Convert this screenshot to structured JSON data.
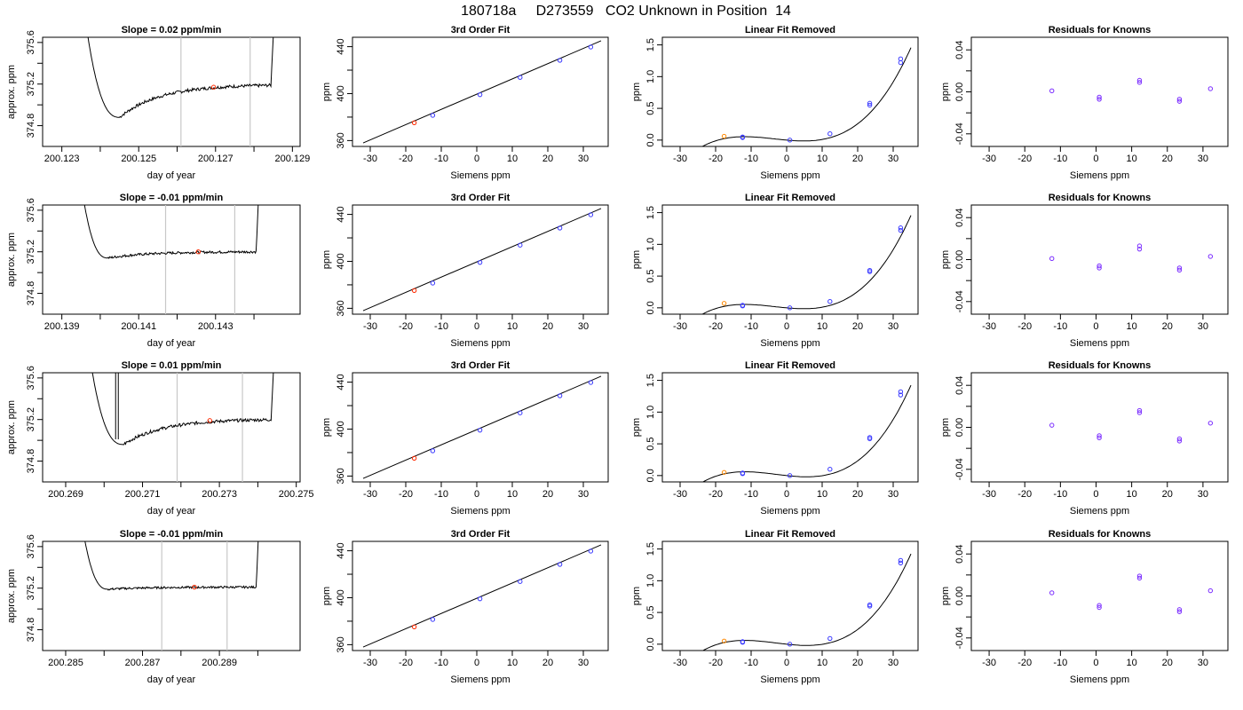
{
  "figure": {
    "title": "180718a     D273559   CO2 Unknown in Position  14",
    "colors": {
      "line": "#000000",
      "sample_point": "#ff2a00",
      "known_point": "#3a3aff",
      "unknown_point_fit": "#ff8800",
      "residual_point": "#7a2cff",
      "window_line": "#c8c8c8"
    }
  },
  "chart_data": [
    {
      "panel": "row1-trace",
      "type": "line",
      "title": "Slope =  0.02  ppm/min",
      "xlabel": "day of year",
      "ylabel": "approx. ppm",
      "xlim": [
        200.1225,
        200.1292
      ],
      "ylim": [
        374.6,
        375.65
      ],
      "xticks": [
        "200.123",
        "200.125",
        "200.127",
        "200.129"
      ],
      "xtick_values": [
        200.123,
        200.125,
        200.127,
        200.129
      ],
      "xminor": [
        200.124,
        200.126,
        200.128
      ],
      "yticks": [
        "374.8",
        "375.2",
        "375.6"
      ],
      "ytick_values": [
        374.8,
        375.2,
        375.6
      ],
      "yminor": [
        375.0,
        375.4
      ],
      "window": [
        200.1261,
        200.1279
      ],
      "trace": {
        "start": 200.1235,
        "end": 200.1287,
        "low_point": [
          200.1245,
          374.88
        ],
        "settle": 375.08,
        "level_end": 375.19,
        "noise": 0.015
      },
      "sample_point": [
        200.12695,
        375.17
      ]
    },
    {
      "panel": "row2-trace",
      "type": "line",
      "title": "Slope =  -0.01  ppm/min",
      "xlabel": "day of year",
      "ylabel": "approx. ppm",
      "xlim": [
        200.1385,
        200.1452
      ],
      "ylim": [
        374.6,
        375.65
      ],
      "xticks": [
        "200.139",
        "200.141",
        "200.143"
      ],
      "xtick_values": [
        200.139,
        200.141,
        200.143
      ],
      "xminor": [
        200.14,
        200.142,
        200.144
      ],
      "yticks": [
        "374.8",
        "375.2",
        "375.6"
      ],
      "ytick_values": [
        374.8,
        375.2,
        375.6
      ],
      "yminor": [
        375.0,
        375.4
      ],
      "window": [
        200.1417,
        200.1435
      ],
      "trace": {
        "start": 200.1394,
        "end": 200.1443,
        "low_point": [
          200.1402,
          375.14
        ],
        "settle": 375.17,
        "level_end": 375.2,
        "noise": 0.012
      },
      "sample_point": [
        200.14255,
        375.2
      ]
    },
    {
      "panel": "row3-trace",
      "type": "line",
      "title": "Slope =  0.01  ppm/min",
      "xlabel": "day of year",
      "ylabel": "approx. ppm",
      "xlim": [
        200.2684,
        200.2751
      ],
      "ylim": [
        374.6,
        375.65
      ],
      "xticks": [
        "200.269",
        "200.271",
        "200.273",
        "200.275"
      ],
      "xtick_values": [
        200.269,
        200.271,
        200.273,
        200.275
      ],
      "xminor": [
        200.27,
        200.272,
        200.274
      ],
      "yticks": [
        "374.8",
        "375.2",
        "375.6"
      ],
      "ytick_values": [
        374.8,
        375.2,
        375.6
      ],
      "yminor": [
        375.0,
        375.4
      ],
      "window": [
        200.2719,
        200.2736
      ],
      "trace": {
        "start": 200.2695,
        "end": 200.2746,
        "low_point": [
          200.2705,
          374.96
        ],
        "settle": 375.1,
        "level_end": 375.2,
        "noise": 0.015,
        "spike_x": 200.2703
      },
      "sample_point": [
        200.27275,
        375.19
      ]
    },
    {
      "panel": "row4-trace",
      "type": "line",
      "title": "Slope =  -0.01  ppm/min",
      "xlabel": "day of year",
      "ylabel": "approx. ppm",
      "xlim": [
        200.2844,
        200.2911
      ],
      "ylim": [
        374.6,
        375.65
      ],
      "xticks": [
        "200.285",
        "200.287",
        "200.289"
      ],
      "xtick_values": [
        200.285,
        200.287,
        200.289
      ],
      "xminor": [
        200.286,
        200.288,
        200.29
      ],
      "yticks": [
        "374.8",
        "375.2",
        "375.6"
      ],
      "ytick_values": [
        374.8,
        375.2,
        375.6
      ],
      "yminor": [
        375.0,
        375.4
      ],
      "window": [
        200.2875,
        200.2892
      ],
      "trace": {
        "start": 200.2853,
        "end": 200.2902,
        "low_point": [
          200.2861,
          375.19
        ],
        "settle": 375.19,
        "level_end": 375.21,
        "noise": 0.01
      },
      "sample_point": [
        200.28835,
        375.21
      ]
    },
    {
      "panel": "row1-fit",
      "type": "scatter",
      "title": "3rd Order Fit",
      "xlabel": "Siemens ppm",
      "ylabel": "ppm",
      "xlim": [
        -35,
        37
      ],
      "ylim": [
        355,
        448
      ],
      "xticks": [
        "-30",
        "-20",
        "-10",
        "0",
        "10",
        "20",
        "30"
      ],
      "xtick_values": [
        -30,
        -20,
        -10,
        0,
        10,
        20,
        30
      ],
      "yticks": [
        "360",
        "400",
        "440"
      ],
      "ytick_values": [
        360,
        400,
        440
      ],
      "yminor": [
        380,
        420
      ],
      "line": [
        [
          -32,
          358
        ],
        [
          35,
          445
        ]
      ],
      "known_points": [
        [
          -12.4,
          381.5
        ],
        [
          0.9,
          399.1
        ],
        [
          12.2,
          413.8
        ],
        [
          23.4,
          428.4
        ],
        [
          32.1,
          439.7
        ]
      ],
      "sample_point": [
        -17.6,
        375.2
      ]
    },
    {
      "panel": "row2-fit",
      "type": "scatter",
      "title": "3rd Order Fit",
      "xlabel": "Siemens ppm",
      "ylabel": "ppm",
      "xlim": [
        -35,
        37
      ],
      "ylim": [
        355,
        448
      ],
      "xticks": [
        "-30",
        "-20",
        "-10",
        "0",
        "10",
        "20",
        "30"
      ],
      "xtick_values": [
        -30,
        -20,
        -10,
        0,
        10,
        20,
        30
      ],
      "yticks": [
        "360",
        "400",
        "440"
      ],
      "ytick_values": [
        360,
        400,
        440
      ],
      "yminor": [
        380,
        420
      ],
      "line": [
        [
          -32,
          358
        ],
        [
          35,
          445
        ]
      ],
      "known_points": [
        [
          -12.4,
          381.5
        ],
        [
          0.9,
          399.1
        ],
        [
          12.2,
          413.8
        ],
        [
          23.4,
          428.4
        ],
        [
          32.1,
          439.7
        ]
      ],
      "sample_point": [
        -17.6,
        375.2
      ]
    },
    {
      "panel": "row3-fit",
      "type": "scatter",
      "title": "3rd Order Fit",
      "xlabel": "Siemens ppm",
      "ylabel": "ppm",
      "xlim": [
        -35,
        37
      ],
      "ylim": [
        355,
        448
      ],
      "xticks": [
        "-30",
        "-20",
        "-10",
        "0",
        "10",
        "20",
        "30"
      ],
      "xtick_values": [
        -30,
        -20,
        -10,
        0,
        10,
        20,
        30
      ],
      "yticks": [
        "360",
        "400",
        "440"
      ],
      "ytick_values": [
        360,
        400,
        440
      ],
      "yminor": [
        380,
        420
      ],
      "line": [
        [
          -32,
          358
        ],
        [
          35,
          445
        ]
      ],
      "known_points": [
        [
          -12.4,
          381.5
        ],
        [
          0.9,
          399.1
        ],
        [
          12.2,
          413.8
        ],
        [
          23.4,
          428.4
        ],
        [
          32.1,
          439.7
        ]
      ],
      "sample_point": [
        -17.6,
        375.2
      ]
    },
    {
      "panel": "row4-fit",
      "type": "scatter",
      "title": "3rd Order Fit",
      "xlabel": "Siemens ppm",
      "ylabel": "ppm",
      "xlim": [
        -35,
        37
      ],
      "ylim": [
        355,
        448
      ],
      "xticks": [
        "-30",
        "-20",
        "-10",
        "0",
        "10",
        "20",
        "30"
      ],
      "xtick_values": [
        -30,
        -20,
        -10,
        0,
        10,
        20,
        30
      ],
      "yticks": [
        "360",
        "400",
        "440"
      ],
      "ytick_values": [
        360,
        400,
        440
      ],
      "yminor": [
        380,
        420
      ],
      "line": [
        [
          -32,
          358
        ],
        [
          35,
          445
        ]
      ],
      "known_points": [
        [
          -12.4,
          381.5
        ],
        [
          0.9,
          399.1
        ],
        [
          12.2,
          413.8
        ],
        [
          23.4,
          428.4
        ],
        [
          32.1,
          439.7
        ]
      ],
      "sample_point": [
        -17.6,
        375.2
      ]
    },
    {
      "panel": "row1-linear-removed",
      "type": "line",
      "title": "Linear Fit Removed",
      "xlabel": "Siemens ppm",
      "ylabel": "ppm",
      "xlim": [
        -35,
        37
      ],
      "ylim": [
        -0.1,
        1.62
      ],
      "xticks": [
        "-30",
        "-20",
        "-10",
        "0",
        "10",
        "20",
        "30"
      ],
      "xtick_values": [
        -30,
        -20,
        -10,
        0,
        10,
        20,
        30
      ],
      "yticks": [
        "0.0",
        "0.5",
        "1.0",
        "1.5"
      ],
      "ytick_values": [
        0,
        0.5,
        1.0,
        1.5
      ],
      "curve_poly": [
        0.0,
        -0.005,
        0.000306,
        2.93e-05
      ],
      "curve_x": [
        -32,
        35
      ],
      "known_points": [
        [
          -12.4,
          0.05
        ],
        [
          -12.4,
          0.04
        ],
        [
          0.9,
          0.0
        ],
        [
          12.2,
          0.1
        ],
        [
          23.4,
          0.55
        ],
        [
          23.4,
          0.58
        ],
        [
          32.1,
          1.22
        ],
        [
          32.1,
          1.28
        ]
      ],
      "sample_point": [
        -17.6,
        0.06
      ]
    },
    {
      "panel": "row2-linear-removed",
      "type": "line",
      "title": "Linear Fit Removed",
      "xlabel": "Siemens ppm",
      "ylabel": "ppm",
      "xlim": [
        -35,
        37
      ],
      "ylim": [
        -0.1,
        1.62
      ],
      "xticks": [
        "-30",
        "-20",
        "-10",
        "0",
        "10",
        "20",
        "30"
      ],
      "xtick_values": [
        -30,
        -20,
        -10,
        0,
        10,
        20,
        30
      ],
      "yticks": [
        "0.0",
        "0.5",
        "1.0",
        "1.5"
      ],
      "ytick_values": [
        0,
        0.5,
        1.0,
        1.5
      ],
      "curve_poly": [
        0.0,
        -0.005,
        0.000306,
        2.93e-05
      ],
      "curve_x": [
        -32,
        35
      ],
      "known_points": [
        [
          -12.4,
          0.04
        ],
        [
          -12.4,
          0.03
        ],
        [
          0.9,
          0.0
        ],
        [
          12.2,
          0.1
        ],
        [
          23.4,
          0.57
        ],
        [
          23.4,
          0.59
        ],
        [
          32.1,
          1.22
        ],
        [
          32.1,
          1.26
        ]
      ],
      "sample_point": [
        -17.6,
        0.07
      ]
    },
    {
      "panel": "row3-linear-removed",
      "type": "line",
      "title": "Linear Fit Removed",
      "xlabel": "Siemens ppm",
      "ylabel": "ppm",
      "xlim": [
        -35,
        37
      ],
      "ylim": [
        -0.1,
        1.62
      ],
      "xticks": [
        "-30",
        "-20",
        "-10",
        "0",
        "10",
        "20",
        "30"
      ],
      "xtick_values": [
        -30,
        -20,
        -10,
        0,
        10,
        20,
        30
      ],
      "yticks": [
        "0.0",
        "0.5",
        "1.0",
        "1.5"
      ],
      "ytick_values": [
        0,
        0.5,
        1.0,
        1.5
      ],
      "curve_poly": [
        0.0,
        -0.006,
        0.000276,
        3.02e-05
      ],
      "curve_x": [
        -32,
        35
      ],
      "known_points": [
        [
          -12.4,
          0.04
        ],
        [
          -12.4,
          0.03
        ],
        [
          0.9,
          0.0
        ],
        [
          12.2,
          0.1
        ],
        [
          23.4,
          0.58
        ],
        [
          23.4,
          0.6
        ],
        [
          32.1,
          1.27
        ],
        [
          32.1,
          1.32
        ]
      ],
      "sample_point": [
        -17.6,
        0.05
      ]
    },
    {
      "panel": "row4-linear-removed",
      "type": "line",
      "title": "Linear Fit Removed",
      "xlabel": "Siemens ppm",
      "ylabel": "ppm",
      "xlim": [
        -35,
        37
      ],
      "ylim": [
        -0.1,
        1.62
      ],
      "xticks": [
        "-30",
        "-20",
        "-10",
        "0",
        "10",
        "20",
        "30"
      ],
      "xtick_values": [
        -30,
        -20,
        -10,
        0,
        10,
        20,
        30
      ],
      "yticks": [
        "0.0",
        "0.5",
        "1.0",
        "1.5"
      ],
      "ytick_values": [
        0,
        0.5,
        1.0,
        1.5
      ],
      "curve_poly": [
        0.0,
        -0.006,
        0.000276,
        3.02e-05
      ],
      "curve_x": [
        -32,
        35
      ],
      "known_points": [
        [
          -12.4,
          0.04
        ],
        [
          -12.4,
          0.03
        ],
        [
          0.9,
          0.0
        ],
        [
          12.2,
          0.09
        ],
        [
          23.4,
          0.6
        ],
        [
          23.4,
          0.62
        ],
        [
          32.1,
          1.28
        ],
        [
          32.1,
          1.32
        ]
      ],
      "sample_point": [
        -17.6,
        0.05
      ]
    },
    {
      "panel": "row1-residuals",
      "type": "scatter",
      "title": "Residuals for Knowns",
      "xlabel": "Siemens ppm",
      "ylabel": "ppm",
      "xlim": [
        -35,
        37
      ],
      "ylim": [
        -0.052,
        0.052
      ],
      "xticks": [
        "-30",
        "-20",
        "-10",
        "0",
        "10",
        "20",
        "30"
      ],
      "xtick_values": [
        -30,
        -20,
        -10,
        0,
        10,
        20,
        30
      ],
      "yticks": [
        "-0.04",
        "0.00",
        "0.04"
      ],
      "ytick_values": [
        -0.04,
        0,
        0.04
      ],
      "yminor": [
        -0.02,
        0.02
      ],
      "points": [
        [
          -12.4,
          0.001
        ],
        [
          0.9,
          -0.005
        ],
        [
          0.9,
          -0.007
        ],
        [
          12.2,
          0.009
        ],
        [
          12.2,
          0.011
        ],
        [
          23.4,
          -0.007
        ],
        [
          23.4,
          -0.009
        ],
        [
          32.1,
          0.003
        ]
      ]
    },
    {
      "panel": "row2-residuals",
      "type": "scatter",
      "title": "Residuals for Knowns",
      "xlabel": "Siemens ppm",
      "ylabel": "ppm",
      "xlim": [
        -35,
        37
      ],
      "ylim": [
        -0.052,
        0.052
      ],
      "xticks": [
        "-30",
        "-20",
        "-10",
        "0",
        "10",
        "20",
        "30"
      ],
      "xtick_values": [
        -30,
        -20,
        -10,
        0,
        10,
        20,
        30
      ],
      "yticks": [
        "-0.04",
        "0.00",
        "0.04"
      ],
      "ytick_values": [
        -0.04,
        0,
        0.04
      ],
      "yminor": [
        -0.02,
        0.02
      ],
      "points": [
        [
          -12.4,
          0.001
        ],
        [
          0.9,
          -0.006
        ],
        [
          0.9,
          -0.008
        ],
        [
          12.2,
          0.01
        ],
        [
          12.2,
          0.013
        ],
        [
          23.4,
          -0.008
        ],
        [
          23.4,
          -0.01
        ],
        [
          32.1,
          0.003
        ]
      ]
    },
    {
      "panel": "row3-residuals",
      "type": "scatter",
      "title": "Residuals for Knowns",
      "xlabel": "Siemens ppm",
      "ylabel": "ppm",
      "xlim": [
        -35,
        37
      ],
      "ylim": [
        -0.052,
        0.052
      ],
      "xticks": [
        "-30",
        "-20",
        "-10",
        "0",
        "10",
        "20",
        "30"
      ],
      "xtick_values": [
        -30,
        -20,
        -10,
        0,
        10,
        20,
        30
      ],
      "yticks": [
        "-0.04",
        "0.00",
        "0.04"
      ],
      "ytick_values": [
        -0.04,
        0,
        0.04
      ],
      "yminor": [
        -0.02,
        0.02
      ],
      "points": [
        [
          -12.4,
          0.002
        ],
        [
          0.9,
          -0.008
        ],
        [
          0.9,
          -0.01
        ],
        [
          12.2,
          0.014
        ],
        [
          12.2,
          0.016
        ],
        [
          23.4,
          -0.011
        ],
        [
          23.4,
          -0.013
        ],
        [
          32.1,
          0.004
        ]
      ]
    },
    {
      "panel": "row4-residuals",
      "type": "scatter",
      "title": "Residuals for Knowns",
      "xlabel": "Siemens ppm",
      "ylabel": "ppm",
      "xlim": [
        -35,
        37
      ],
      "ylim": [
        -0.052,
        0.052
      ],
      "xticks": [
        "-30",
        "-20",
        "-10",
        "0",
        "10",
        "20",
        "30"
      ],
      "xtick_values": [
        -30,
        -20,
        -10,
        0,
        10,
        20,
        30
      ],
      "yticks": [
        "-0.04",
        "0.00",
        "0.04"
      ],
      "ytick_values": [
        -0.04,
        0,
        0.04
      ],
      "yminor": [
        -0.02,
        0.02
      ],
      "points": [
        [
          -12.4,
          0.003
        ],
        [
          0.9,
          -0.009
        ],
        [
          0.9,
          -0.011
        ],
        [
          12.2,
          0.017
        ],
        [
          12.2,
          0.019
        ],
        [
          23.4,
          -0.013
        ],
        [
          23.4,
          -0.015
        ],
        [
          32.1,
          0.005
        ]
      ]
    }
  ]
}
